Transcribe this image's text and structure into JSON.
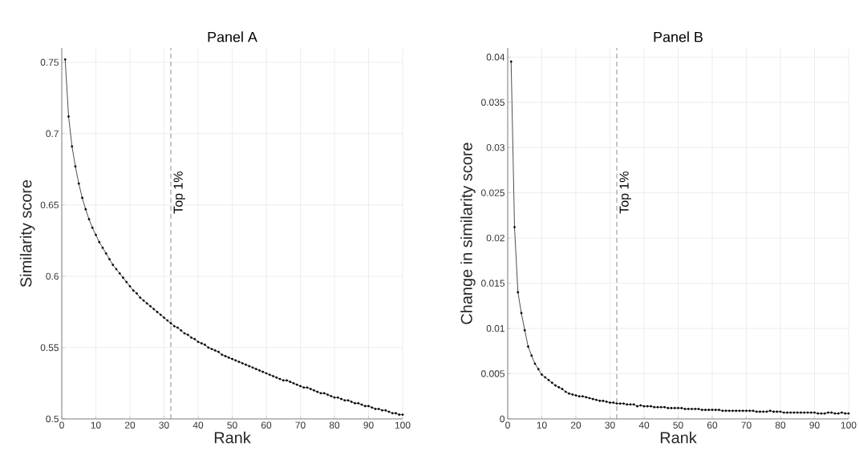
{
  "chart_data": [
    {
      "type": "line",
      "title": "Panel A",
      "xlabel": "Rank",
      "ylabel": "Similarity score",
      "x": [
        1,
        2,
        3,
        4,
        5,
        6,
        7,
        8,
        9,
        10,
        11,
        12,
        13,
        14,
        15,
        16,
        17,
        18,
        19,
        20,
        21,
        22,
        23,
        24,
        25,
        26,
        27,
        28,
        29,
        30,
        31,
        32,
        33,
        34,
        35,
        36,
        37,
        38,
        39,
        40,
        41,
        42,
        43,
        44,
        45,
        46,
        47,
        48,
        49,
        50,
        51,
        52,
        53,
        54,
        55,
        56,
        57,
        58,
        59,
        60,
        61,
        62,
        63,
        64,
        65,
        66,
        67,
        68,
        69,
        70,
        71,
        72,
        73,
        74,
        75,
        76,
        77,
        78,
        79,
        80,
        81,
        82,
        83,
        84,
        85,
        86,
        87,
        88,
        89,
        90,
        91,
        92,
        93,
        94,
        95,
        96,
        97,
        98,
        99,
        100
      ],
      "series": [
        {
          "color": "#000000",
          "values": [
            0.752,
            0.712,
            0.691,
            0.677,
            0.665,
            0.655,
            0.647,
            0.64,
            0.634,
            0.629,
            0.624,
            0.62,
            0.616,
            0.612,
            0.608,
            0.605,
            0.602,
            0.599,
            0.596,
            0.593,
            0.59,
            0.588,
            0.585,
            0.583,
            0.581,
            0.579,
            0.577,
            0.575,
            0.573,
            0.571,
            0.569,
            0.567,
            0.565,
            0.564,
            0.562,
            0.56,
            0.559,
            0.557,
            0.556,
            0.554,
            0.553,
            0.552,
            0.55,
            0.549,
            0.548,
            0.547,
            0.545,
            0.544,
            0.543,
            0.542,
            0.541,
            0.54,
            0.539,
            0.538,
            0.537,
            0.536,
            0.535,
            0.534,
            0.533,
            0.532,
            0.531,
            0.53,
            0.529,
            0.528,
            0.527,
            0.527,
            0.526,
            0.525,
            0.524,
            0.523,
            0.522,
            0.522,
            0.521,
            0.52,
            0.519,
            0.518,
            0.518,
            0.517,
            0.516,
            0.515,
            0.515,
            0.514,
            0.513,
            0.513,
            0.512,
            0.511,
            0.511,
            0.51,
            0.509,
            0.509,
            0.508,
            0.507,
            0.507,
            0.506,
            0.506,
            0.505,
            0.504,
            0.504,
            0.503,
            0.503
          ]
        }
      ],
      "xlim": [
        0,
        100
      ],
      "ylim": [
        0.5,
        0.76
      ],
      "xticks": [
        0,
        10,
        20,
        30,
        40,
        50,
        60,
        70,
        80,
        90,
        100
      ],
      "yticks": [
        0.5,
        0.55,
        0.6,
        0.65,
        0.7,
        0.75
      ],
      "grid": true,
      "marker": "circle",
      "line_style": "solid",
      "ref_lines": [
        {
          "axis": "x",
          "value": 32,
          "label": "Top 1%",
          "color": "#808080",
          "line_style": "dashed"
        }
      ]
    },
    {
      "type": "line",
      "title": "Panel B",
      "xlabel": "Rank",
      "ylabel": "Change in similarity score",
      "x": [
        1,
        2,
        3,
        4,
        5,
        6,
        7,
        8,
        9,
        10,
        11,
        12,
        13,
        14,
        15,
        16,
        17,
        18,
        19,
        20,
        21,
        22,
        23,
        24,
        25,
        26,
        27,
        28,
        29,
        30,
        31,
        32,
        33,
        34,
        35,
        36,
        37,
        38,
        39,
        40,
        41,
        42,
        43,
        44,
        45,
        46,
        47,
        48,
        49,
        50,
        51,
        52,
        53,
        54,
        55,
        56,
        57,
        58,
        59,
        60,
        61,
        62,
        63,
        64,
        65,
        66,
        67,
        68,
        69,
        70,
        71,
        72,
        73,
        74,
        75,
        76,
        77,
        78,
        79,
        80,
        81,
        82,
        83,
        84,
        85,
        86,
        87,
        88,
        89,
        90,
        91,
        92,
        93,
        94,
        95,
        96,
        97,
        98,
        99,
        100
      ],
      "series": [
        {
          "color": "#000000",
          "values": [
            0.0395,
            0.0212,
            0.014,
            0.0117,
            0.0098,
            0.008,
            0.007,
            0.0061,
            0.0055,
            0.0049,
            0.0046,
            0.0043,
            0.004,
            0.0037,
            0.0035,
            0.0033,
            0.003,
            0.0028,
            0.0027,
            0.0026,
            0.0025,
            0.0025,
            0.0024,
            0.0023,
            0.0022,
            0.0021,
            0.002,
            0.002,
            0.0019,
            0.0018,
            0.0018,
            0.0017,
            0.0017,
            0.0017,
            0.0016,
            0.0016,
            0.0016,
            0.0014,
            0.0015,
            0.0014,
            0.0014,
            0.0014,
            0.0013,
            0.0013,
            0.0013,
            0.0013,
            0.0012,
            0.0012,
            0.0012,
            0.0012,
            0.0012,
            0.0011,
            0.0011,
            0.0011,
            0.0011,
            0.0011,
            0.001,
            0.001,
            0.001,
            0.001,
            0.001,
            0.001,
            0.0009,
            0.0009,
            0.0009,
            0.0009,
            0.0009,
            0.0009,
            0.0009,
            0.0009,
            0.0009,
            0.0009,
            0.0008,
            0.0008,
            0.0008,
            0.0008,
            0.0009,
            0.0008,
            0.0008,
            0.0008,
            0.0007,
            0.0007,
            0.0007,
            0.0007,
            0.0007,
            0.0007,
            0.0007,
            0.0007,
            0.0007,
            0.0007,
            0.0006,
            0.0006,
            0.0006,
            0.0007,
            0.0007,
            0.0006,
            0.0006,
            0.0007,
            0.0006,
            0.0006
          ]
        }
      ],
      "xlim": [
        0,
        100
      ],
      "ylim": [
        0,
        0.041
      ],
      "xticks": [
        0,
        10,
        20,
        30,
        40,
        50,
        60,
        70,
        80,
        90,
        100
      ],
      "yticks": [
        0,
        0.005,
        0.01,
        0.015,
        0.02,
        0.025,
        0.03,
        0.035,
        0.04
      ],
      "grid": true,
      "marker": "circle",
      "line_style": "solid",
      "ref_lines": [
        {
          "axis": "x",
          "value": 32,
          "label": "Top 1%",
          "color": "#808080",
          "line_style": "dashed"
        }
      ]
    }
  ]
}
